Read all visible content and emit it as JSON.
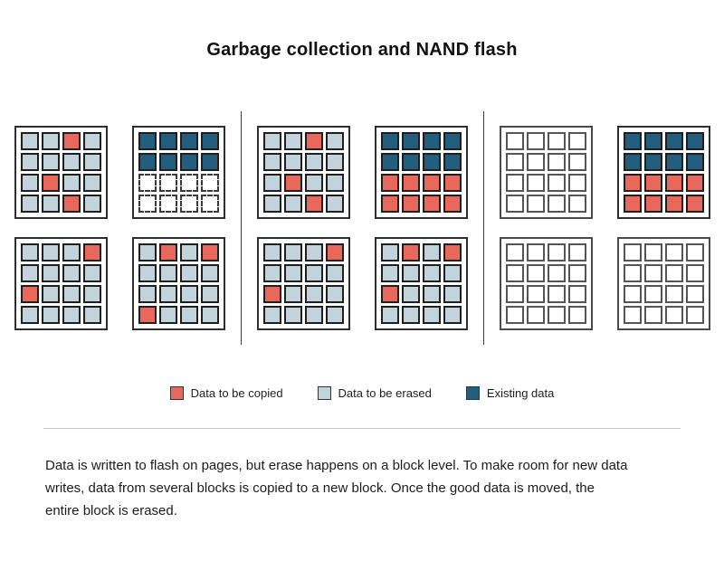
{
  "title": "Garbage collection and NAND flash",
  "colors": {
    "copied": "#e8695b",
    "erased": "#c2d3dc",
    "existing": "#235e7e",
    "cell_border": "#1f1f1f"
  },
  "cell_codes": {
    "C": "data-to-be-copied",
    "E": "data-to-be-erased",
    "X": "existing-data",
    "W": "empty-cell",
    "D": "empty-cell-dashed"
  },
  "panels": [
    {
      "name": "stage-1",
      "blocks": [
        [
          "EECE",
          "EEEE",
          "ECEE",
          "EECE"
        ],
        [
          "XXXX",
          "XXXX",
          "DDDD",
          "DDDD"
        ],
        [
          "EEEC",
          "EEEE",
          "CEEE",
          "EEEE"
        ],
        [
          "ECEC",
          "EEEE",
          "EEEE",
          "CEEE"
        ]
      ]
    },
    {
      "name": "stage-2",
      "blocks": [
        [
          "EECE",
          "EEEE",
          "ECEE",
          "EECE"
        ],
        [
          "XXXX",
          "XXXX",
          "CCCC",
          "CCCC"
        ],
        [
          "EEEC",
          "EEEE",
          "CEEE",
          "EEEE"
        ],
        [
          "ECEC",
          "EEEE",
          "CEEE",
          "EEEE"
        ]
      ]
    },
    {
      "name": "stage-3",
      "blocks": [
        [
          "WWWW",
          "WWWW",
          "WWWW",
          "WWWW"
        ],
        [
          "XXXX",
          "XXXX",
          "CCCC",
          "CCCC"
        ],
        [
          "WWWW",
          "WWWW",
          "WWWW",
          "WWWW"
        ],
        [
          "WWWW",
          "WWWW",
          "WWWW",
          "WWWW"
        ]
      ]
    }
  ],
  "legend": [
    {
      "label": "Data to be copied",
      "color": "#e8695b"
    },
    {
      "label": "Data to be erased",
      "color": "#c2d3dc"
    },
    {
      "label": "Existing data",
      "color": "#235e7e"
    }
  ],
  "description": "Data is written to flash on pages, but erase happens on a block level. To make room for new data writes, data from several blocks is copied to a new block. Once the good data is moved, the entire block is erased."
}
